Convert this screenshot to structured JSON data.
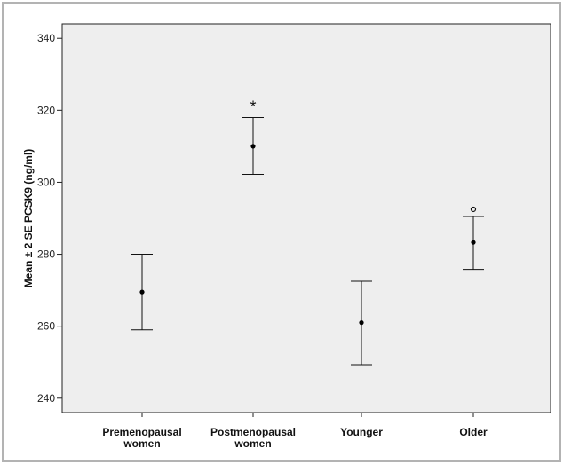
{
  "chart_data": {
    "type": "errorbar",
    "title": "",
    "xlabel": "",
    "ylabel": "Mean ± 2 SE PCSK9 (ng/ml)",
    "ylim": [
      236,
      344
    ],
    "yticks": [
      240,
      260,
      280,
      300,
      320,
      340
    ],
    "ytick_labels": [
      "240",
      "260",
      "280",
      "300",
      "320",
      "340"
    ],
    "categories": [
      "Premenopausal\nwomen",
      "Postmenopausal\nwomen",
      "Younger",
      "Older"
    ],
    "mean": [
      269.5,
      310,
      261,
      283.3
    ],
    "lower": [
      259,
      302.2,
      249.3,
      275.8
    ],
    "upper": [
      280,
      318,
      272.5,
      290.5
    ],
    "markers": [
      "",
      "*",
      "",
      "°"
    ],
    "grid": false,
    "colors": {
      "plot_background": "#eeeeee",
      "points": "#000000",
      "frame": "#b3b3b3"
    }
  }
}
